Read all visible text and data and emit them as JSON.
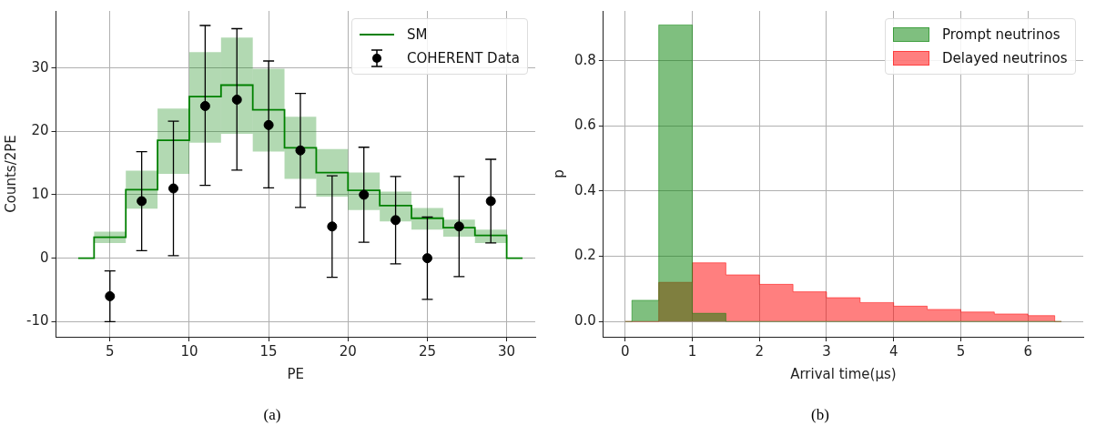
{
  "chart_data": [
    {
      "type": "step",
      "xlabel": "PE",
      "ylabel": "Counts/2PE",
      "xlim": [
        1.6,
        31.8
      ],
      "ylim": [
        -12.4,
        39
      ],
      "xticks": [
        5,
        10,
        15,
        20,
        25,
        30
      ],
      "yticks": [
        -10,
        0,
        10,
        20,
        30
      ],
      "grid": true,
      "legend": "top right",
      "annotations": [
        "(a)"
      ],
      "series": [
        {
          "type": "step",
          "name": "SM",
          "color": "#008000",
          "x": [
            3,
            4,
            6,
            8,
            10,
            12,
            14,
            16,
            18,
            20,
            22,
            24,
            26,
            28,
            30,
            31
          ],
          "values": [
            0,
            3.3,
            10.8,
            18.6,
            25.5,
            27.3,
            23.4,
            17.4,
            13.5,
            10.7,
            8.3,
            6.3,
            4.8,
            3.6,
            0,
            0
          ],
          "lower": [
            null,
            2.4,
            7.8,
            13.3,
            18.2,
            19.6,
            16.8,
            12.5,
            9.7,
            7.6,
            5.8,
            4.5,
            3.4,
            2.4,
            2.4,
            null
          ],
          "upper": [
            null,
            4.2,
            13.8,
            23.6,
            32.5,
            34.8,
            29.9,
            22.3,
            17.2,
            13.5,
            10.5,
            7.9,
            6.1,
            4.5,
            4.5,
            null
          ]
        },
        {
          "type": "scatter",
          "name": "COHERENT Data",
          "color": "#000000",
          "marker": "circle",
          "x": [
            5,
            7,
            9,
            11,
            13,
            15,
            17,
            19,
            21,
            23,
            25,
            27,
            29
          ],
          "values": [
            -6,
            9,
            11,
            24,
            25,
            21,
            17,
            5,
            10,
            6,
            0,
            5,
            9
          ],
          "errors": [
            [
              -10,
              -2
            ],
            [
              1.2,
              16.8
            ],
            [
              0.4,
              21.6
            ],
            [
              11.5,
              36.7
            ],
            [
              13.9,
              36.2
            ],
            [
              11.1,
              31.1
            ],
            [
              8,
              26
            ],
            [
              -3,
              13
            ],
            [
              2.5,
              17.5
            ],
            [
              -0.9,
              12.9
            ],
            [
              -6.5,
              6.5
            ],
            [
              -2.9,
              12.9
            ],
            [
              2.4,
              15.6
            ]
          ]
        }
      ]
    },
    {
      "type": "histogram",
      "xlabel": "Arrival time(μs)",
      "ylabel": "p",
      "xlim": [
        -0.325,
        6.825
      ],
      "ylim": [
        -0.047,
        0.953
      ],
      "xticks": [
        0,
        1,
        2,
        3,
        4,
        5,
        6
      ],
      "yticks": [
        {
          "value": 0,
          "label": "0.0"
        },
        0.2,
        0.4,
        0.6,
        0.8
      ],
      "grid": true,
      "legend": "top right",
      "annotations": [
        "(b)"
      ],
      "bins": [
        0,
        0.1,
        0.5,
        1,
        1.5,
        2,
        2.5,
        3,
        3.5,
        4,
        4.5,
        5,
        5.5,
        6,
        6.4,
        6.5
      ],
      "series": [
        {
          "name": "Prompt neutrinos",
          "color": "#008000",
          "values": [
            0,
            0.065,
            0.91,
            0.025,
            0,
            0,
            0,
            0,
            0,
            0,
            0,
            0,
            0,
            0,
            0
          ]
        },
        {
          "name": "Delayed neutrinos",
          "color": "#ff0000",
          "values": [
            0,
            0,
            0.12,
            0.18,
            0.143,
            0.114,
            0.091,
            0.073,
            0.058,
            0.047,
            0.037,
            0.029,
            0.023,
            0.018,
            0
          ]
        }
      ]
    }
  ]
}
